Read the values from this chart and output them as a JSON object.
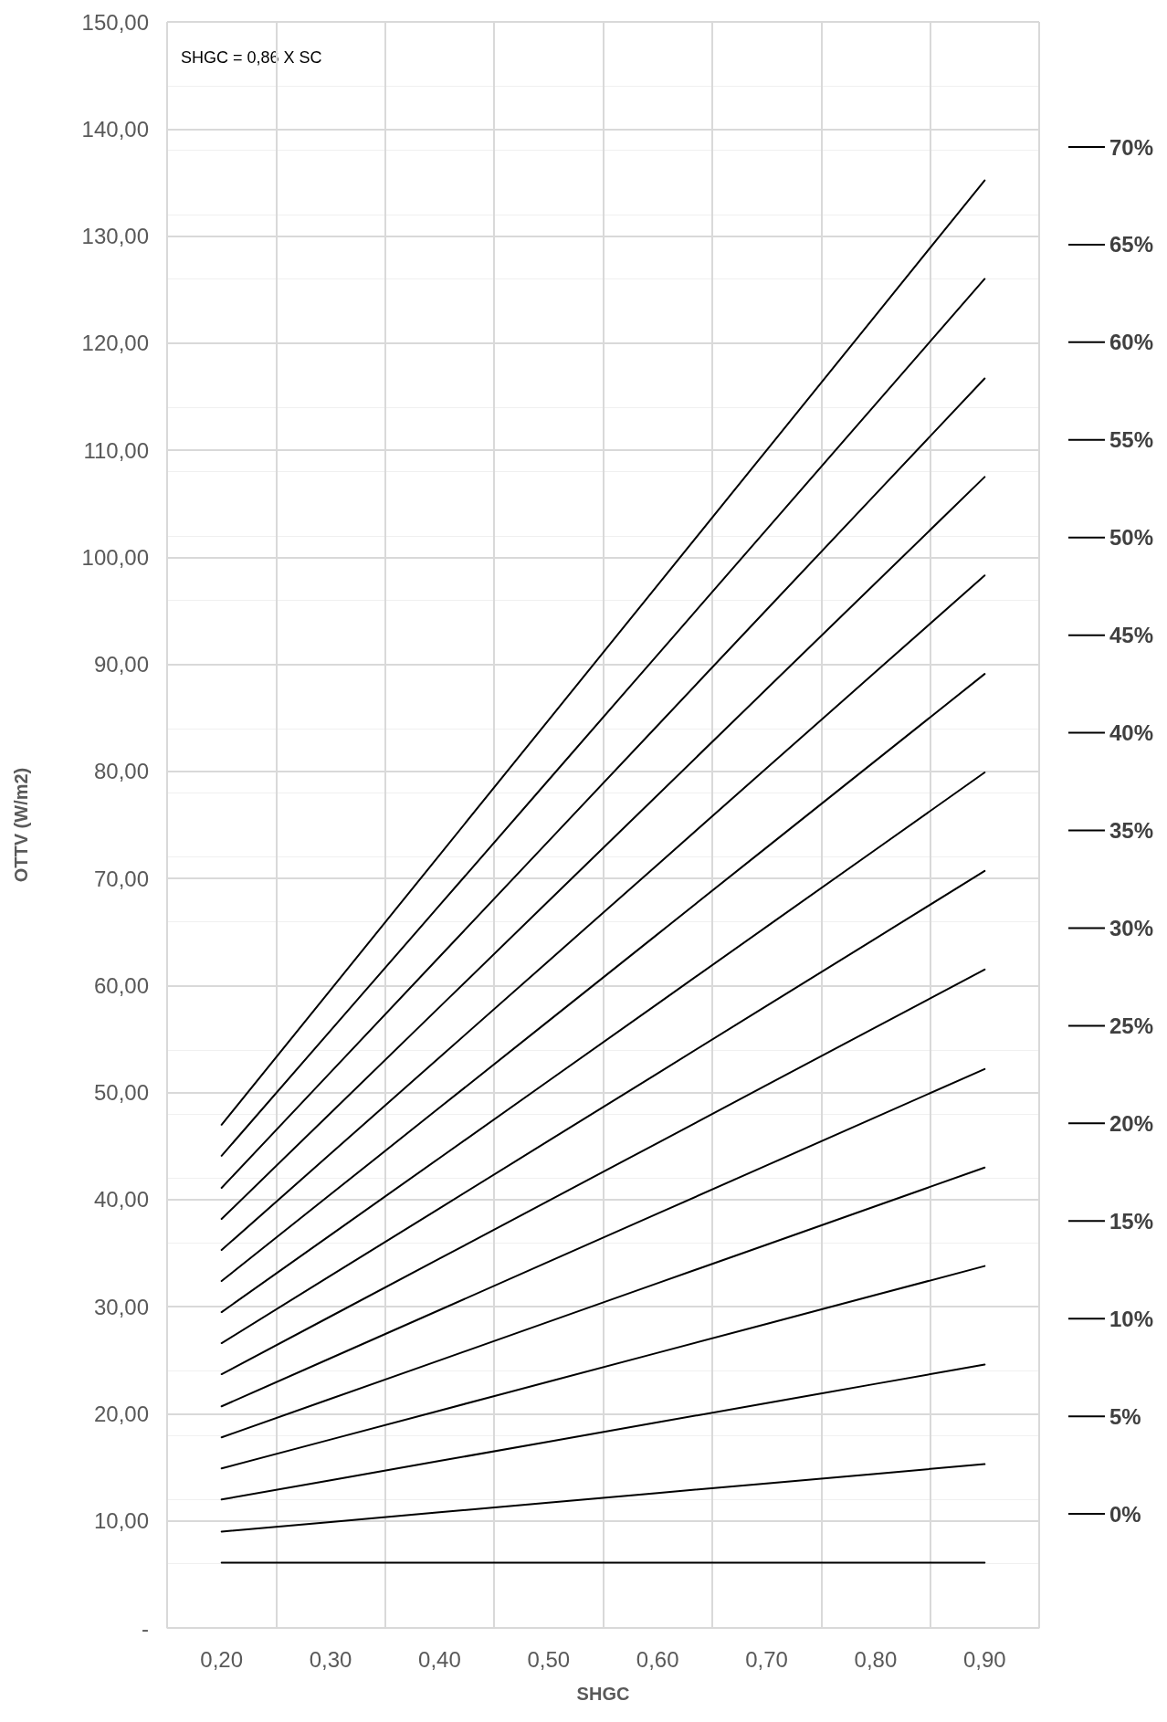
{
  "chart_data": {
    "type": "line",
    "xlabel": "SHGC",
    "ylabel": "OTTV (W/m2)",
    "annotations": [
      "SHGC = 0,86 X SC"
    ],
    "categories": [
      "0,20",
      "0,30",
      "0,40",
      "0,50",
      "0,60",
      "0,70",
      "0,80",
      "0,90"
    ],
    "ylim": [
      0,
      150
    ],
    "yticks": [
      {
        "value": 0,
        "label": "-"
      },
      {
        "value": 10,
        "label": "10,00"
      },
      {
        "value": 20,
        "label": "20,00"
      },
      {
        "value": 30,
        "label": "30,00"
      },
      {
        "value": 40,
        "label": "40,00"
      },
      {
        "value": 50,
        "label": "50,00"
      },
      {
        "value": 60,
        "label": "60,00"
      },
      {
        "value": 70,
        "label": "70,00"
      },
      {
        "value": 80,
        "label": "80,00"
      },
      {
        "value": 90,
        "label": "90,00"
      },
      {
        "value": 100,
        "label": "100,00"
      },
      {
        "value": 110,
        "label": "110,00"
      },
      {
        "value": 120,
        "label": "120,00"
      },
      {
        "value": 130,
        "label": "130,00"
      },
      {
        "value": 140,
        "label": "140,00"
      },
      {
        "value": 150,
        "label": "150,00"
      }
    ],
    "grid": true,
    "legend": "right",
    "marker": "none",
    "line_style": "solid",
    "series": [
      {
        "name": "70%",
        "color": "#000000",
        "values": [
          47.0,
          59.6,
          72.2,
          84.8,
          97.4,
          110.0,
          122.6,
          135.2
        ]
      },
      {
        "name": "65%",
        "color": "#000000",
        "values": [
          44.1,
          55.8,
          67.5,
          79.2,
          90.9,
          102.6,
          114.3,
          126.0
        ]
      },
      {
        "name": "60%",
        "color": "#000000",
        "values": [
          41.1,
          51.9,
          62.7,
          73.5,
          84.3,
          95.1,
          105.9,
          116.7
        ]
      },
      {
        "name": "55%",
        "color": "#000000",
        "values": [
          38.2,
          48.1,
          58.0,
          67.9,
          77.8,
          87.7,
          97.6,
          107.5
        ]
      },
      {
        "name": "50%",
        "color": "#000000",
        "values": [
          35.3,
          44.3,
          53.3,
          62.3,
          71.3,
          80.3,
          89.3,
          98.3
        ]
      },
      {
        "name": "45%",
        "color": "#000000",
        "values": [
          32.4,
          40.5,
          48.6,
          56.7,
          64.8,
          72.9,
          81.0,
          89.1
        ]
      },
      {
        "name": "40%",
        "color": "#000000",
        "values": [
          29.5,
          36.7,
          43.9,
          51.1,
          58.3,
          65.5,
          72.7,
          79.9
        ]
      },
      {
        "name": "35%",
        "color": "#000000",
        "values": [
          26.6,
          32.9,
          39.2,
          45.5,
          51.8,
          58.1,
          64.4,
          70.7
        ]
      },
      {
        "name": "30%",
        "color": "#000000",
        "values": [
          23.7,
          29.1,
          34.5,
          39.9,
          45.3,
          50.7,
          56.1,
          61.5
        ]
      },
      {
        "name": "25%",
        "color": "#000000",
        "values": [
          20.7,
          25.2,
          29.7,
          34.2,
          38.7,
          43.2,
          47.7,
          52.2
        ]
      },
      {
        "name": "20%",
        "color": "#000000",
        "values": [
          17.8,
          21.4,
          25.0,
          28.6,
          32.2,
          35.8,
          39.4,
          43.0
        ]
      },
      {
        "name": "15%",
        "color": "#000000",
        "values": [
          14.9,
          17.6,
          20.3,
          23.0,
          25.7,
          28.4,
          31.1,
          33.8
        ]
      },
      {
        "name": "10%",
        "color": "#000000",
        "values": [
          12.0,
          13.8,
          15.6,
          17.4,
          19.2,
          21.0,
          22.8,
          24.6
        ]
      },
      {
        "name": "5%",
        "color": "#000000",
        "values": [
          9.0,
          9.9,
          10.8,
          11.7,
          12.6,
          13.5,
          14.4,
          15.3
        ]
      },
      {
        "name": "0%",
        "color": "#000000",
        "values": [
          6.1,
          6.1,
          6.1,
          6.1,
          6.1,
          6.1,
          6.1,
          6.1
        ]
      }
    ]
  }
}
